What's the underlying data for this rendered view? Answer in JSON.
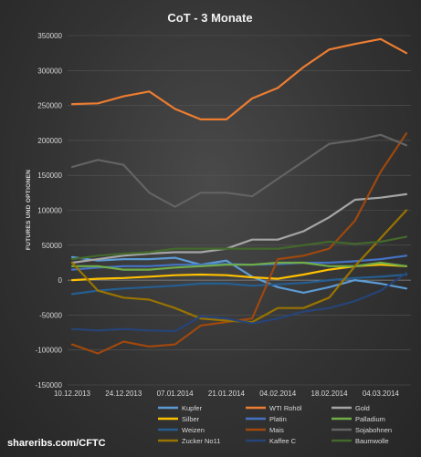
{
  "footer": {
    "source": "shareribs.com/CFTC"
  },
  "chart_data": {
    "type": "line",
    "title": "CoT - 3 Monate",
    "ylabel": "FUTURES UND OPTIONEN",
    "ylim": [
      -150000,
      350000
    ],
    "yticks": [
      350000,
      300000,
      250000,
      200000,
      150000,
      100000,
      50000,
      0,
      -50000,
      -100000,
      -150000
    ],
    "x": [
      "10.12.2013",
      "17.12.2013",
      "24.12.2013",
      "31.12.2013",
      "07.01.2014",
      "14.01.2014",
      "21.01.2014",
      "28.01.2014",
      "04.02.2014",
      "11.02.2014",
      "18.02.2014",
      "25.02.2014",
      "04.03.2014",
      "11.03.2014"
    ],
    "xtick_labels": [
      "10.12.2013",
      "24.12.2013",
      "07.01.2014",
      "21.01.2014",
      "04.02.2014",
      "18.02.2014",
      "04.03.2014"
    ],
    "grid": true,
    "legend_position": "bottom",
    "series": [
      {
        "name": "Kupfer",
        "color": "#5b9bd5",
        "values": [
          33000,
          28000,
          30000,
          30000,
          32000,
          22000,
          28000,
          5000,
          -10000,
          -18000,
          -10000,
          0,
          -5000,
          -12000
        ]
      },
      {
        "name": "WTI Rohöl",
        "color": "#ed7d31",
        "values": [
          252000,
          253000,
          263000,
          270000,
          245000,
          230000,
          230000,
          260000,
          275000,
          305000,
          330000,
          338000,
          345000,
          325000
        ]
      },
      {
        "name": "Gold",
        "color": "#a5a5a5",
        "values": [
          25000,
          30000,
          35000,
          38000,
          40000,
          40000,
          45000,
          58000,
          58000,
          70000,
          90000,
          115000,
          118000,
          123000
        ]
      },
      {
        "name": "Silber",
        "color": "#ffc000",
        "values": [
          0,
          2000,
          3000,
          5000,
          7000,
          8000,
          7000,
          4000,
          2000,
          8000,
          15000,
          20000,
          22000,
          20000
        ]
      },
      {
        "name": "Platin",
        "color": "#4472c4",
        "values": [
          15000,
          18000,
          20000,
          20000,
          22000,
          22000,
          23000,
          22000,
          23000,
          25000,
          25000,
          27000,
          30000,
          35000
        ]
      },
      {
        "name": "Palladium",
        "color": "#70ad47",
        "values": [
          20000,
          20000,
          15000,
          15000,
          18000,
          20000,
          22000,
          22000,
          25000,
          25000,
          20000,
          20000,
          25000,
          20000
        ]
      },
      {
        "name": "Weizen",
        "color": "#255e91",
        "values": [
          -20000,
          -15000,
          -12000,
          -10000,
          -8000,
          -5000,
          -5000,
          -8000,
          -6000,
          -4000,
          0,
          3000,
          5000,
          8000
        ]
      },
      {
        "name": "Mais",
        "color": "#9e480e",
        "values": [
          -92000,
          -105000,
          -88000,
          -95000,
          -92000,
          -65000,
          -60000,
          -55000,
          30000,
          35000,
          45000,
          85000,
          155000,
          210000
        ]
      },
      {
        "name": "Sojabohnen",
        "color": "#636363",
        "values": [
          162000,
          172000,
          165000,
          125000,
          105000,
          125000,
          125000,
          120000,
          145000,
          170000,
          195000,
          200000,
          208000,
          193000
        ]
      },
      {
        "name": "Zucker No11",
        "color": "#997300",
        "values": [
          25000,
          -15000,
          -25000,
          -28000,
          -40000,
          -55000,
          -58000,
          -60000,
          -40000,
          -40000,
          -25000,
          20000,
          60000,
          100000
        ]
      },
      {
        "name": "Kaffee C",
        "color": "#264478",
        "values": [
          -70000,
          -72000,
          -70000,
          -72000,
          -73000,
          -52000,
          -55000,
          -62000,
          -55000,
          -45000,
          -40000,
          -30000,
          -15000,
          10000
        ]
      },
      {
        "name": "Baumwolle",
        "color": "#43682b",
        "values": [
          30000,
          35000,
          38000,
          40000,
          45000,
          45000,
          45000,
          45000,
          45000,
          50000,
          55000,
          52000,
          55000,
          62000
        ]
      }
    ]
  }
}
